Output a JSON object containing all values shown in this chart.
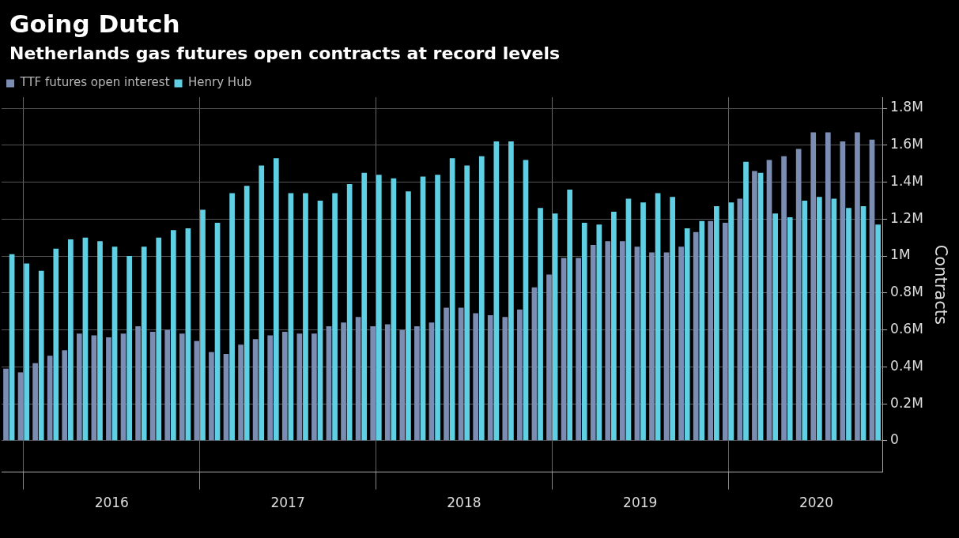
{
  "chart_data": {
    "type": "bar",
    "title": "Going Dutch",
    "subtitle": "Netherlands gas futures open contracts at record levels",
    "ylabel": "Contracts",
    "categories": [
      null,
      null,
      null,
      null,
      null,
      null,
      null,
      "2016",
      null,
      null,
      null,
      null,
      null,
      null,
      null,
      null,
      null,
      null,
      null,
      "2017",
      null,
      null,
      null,
      null,
      null,
      null,
      null,
      null,
      null,
      null,
      null,
      "2018",
      null,
      null,
      null,
      null,
      null,
      null,
      null,
      null,
      null,
      null,
      null,
      "2019",
      null,
      null,
      null,
      null,
      null,
      null,
      null,
      null,
      null,
      null,
      null,
      "2020",
      null,
      null,
      null,
      null
    ],
    "series": [
      {
        "name": "TTF futures open interest",
        "color": "#7b8db3",
        "values": [
          0.39,
          0.37,
          0.42,
          0.46,
          0.49,
          0.58,
          0.57,
          0.56,
          0.58,
          0.62,
          0.59,
          0.6,
          0.58,
          0.54,
          0.48,
          0.47,
          0.52,
          0.55,
          0.57,
          0.59,
          0.58,
          0.58,
          0.62,
          0.64,
          0.67,
          0.62,
          0.63,
          0.6,
          0.62,
          0.64,
          0.72,
          0.72,
          0.69,
          0.68,
          0.67,
          0.71,
          0.83,
          0.9,
          0.99,
          0.99,
          1.06,
          1.08,
          1.08,
          1.05,
          1.02,
          1.02,
          1.05,
          1.13,
          1.19,
          1.18,
          1.31,
          1.46,
          1.52,
          1.54,
          1.58,
          1.67,
          1.67,
          1.62,
          1.67,
          1.63
        ]
      },
      {
        "name": "Henry Hub",
        "color": "#5fd0e3",
        "values": [
          1.01,
          0.96,
          0.92,
          1.04,
          1.09,
          1.1,
          1.08,
          1.05,
          1.0,
          1.05,
          1.1,
          1.14,
          1.15,
          1.25,
          1.18,
          1.34,
          1.38,
          1.49,
          1.53,
          1.34,
          1.34,
          1.3,
          1.34,
          1.39,
          1.45,
          1.44,
          1.42,
          1.35,
          1.43,
          1.44,
          1.53,
          1.49,
          1.54,
          1.62,
          1.62,
          1.52,
          1.26,
          1.23,
          1.36,
          1.18,
          1.17,
          1.24,
          1.31,
          1.29,
          1.34,
          1.32,
          1.15,
          1.19,
          1.27,
          1.29,
          1.51,
          1.45,
          1.23,
          1.21,
          1.3,
          1.32,
          1.31,
          1.26,
          1.27,
          1.17
        ]
      }
    ],
    "ylim": [
      -0.17,
      1.86
    ],
    "yticks": [
      {
        "value": 0,
        "label": "0"
      },
      {
        "value": 0.2,
        "label": "0.2M"
      },
      {
        "value": 0.4,
        "label": "0.4M"
      },
      {
        "value": 0.6,
        "label": "0.6M"
      },
      {
        "value": 0.8,
        "label": "0.8M"
      },
      {
        "value": 1,
        "label": "1M"
      },
      {
        "value": 1.2,
        "label": "1.2M"
      },
      {
        "value": 1.4,
        "label": "1.4M"
      },
      {
        "value": 1.6,
        "label": "1.6M"
      },
      {
        "value": 1.8,
        "label": "1.8M"
      }
    ],
    "grid": true,
    "legend": "top left"
  }
}
